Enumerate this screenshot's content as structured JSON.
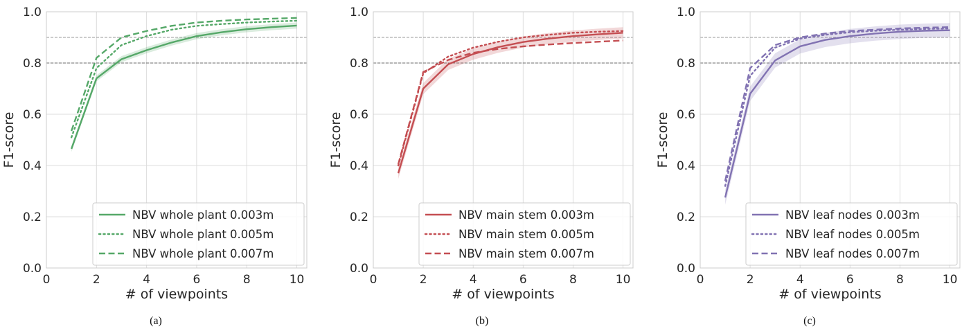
{
  "chart_data": [
    {
      "type": "line",
      "panel_label": "(a)",
      "xlabel": "# of viewpoints",
      "ylabel": "F1-score",
      "xlim": [
        0,
        10.4
      ],
      "ylim": [
        0,
        1.0
      ],
      "xticks": [
        "0",
        "2",
        "4",
        "6",
        "8",
        "10"
      ],
      "yticks": [
        "0.0",
        "0.2",
        "0.4",
        "0.6",
        "0.8",
        "1.0"
      ],
      "grid": true,
      "legend_position": "lower-right",
      "hlines": [
        0.8,
        0.9
      ],
      "color": "#55a868",
      "x": [
        1,
        2,
        3,
        4,
        5,
        6,
        7,
        8,
        9,
        10
      ],
      "series": [
        {
          "name": "NBV whole plant 0.003m",
          "style": "solid",
          "values": [
            0.465,
            0.74,
            0.815,
            0.85,
            0.88,
            0.905,
            0.92,
            0.932,
            0.94,
            0.946
          ],
          "band": 0.012
        },
        {
          "name": "NBV whole plant 0.005m",
          "style": "dotted",
          "values": [
            0.51,
            0.78,
            0.87,
            0.905,
            0.93,
            0.945,
            0.952,
            0.958,
            0.962,
            0.965
          ],
          "band": 0.0
        },
        {
          "name": "NBV whole plant 0.007m",
          "style": "dashed",
          "values": [
            0.535,
            0.82,
            0.9,
            0.925,
            0.945,
            0.958,
            0.965,
            0.97,
            0.973,
            0.976
          ],
          "band": 0.0
        }
      ]
    },
    {
      "type": "line",
      "panel_label": "(b)",
      "xlabel": "# of viewpoints",
      "ylabel": "F1-score",
      "xlim": [
        0,
        10.4
      ],
      "ylim": [
        0,
        1.0
      ],
      "xticks": [
        "0",
        "2",
        "4",
        "6",
        "8",
        "10"
      ],
      "yticks": [
        "0.0",
        "0.2",
        "0.4",
        "0.6",
        "0.8",
        "1.0"
      ],
      "grid": true,
      "legend_position": "lower-right",
      "hlines": [
        0.8,
        0.9
      ],
      "color": "#c44e52",
      "x": [
        1,
        2,
        3,
        4,
        5,
        6,
        7,
        8,
        9,
        10
      ],
      "series": [
        {
          "name": "NBV main stem 0.003m",
          "style": "solid",
          "values": [
            0.37,
            0.7,
            0.795,
            0.835,
            0.862,
            0.882,
            0.895,
            0.905,
            0.912,
            0.918
          ],
          "band": 0.022
        },
        {
          "name": "NBV main stem 0.005m",
          "style": "dotted",
          "values": [
            0.4,
            0.76,
            0.825,
            0.86,
            0.883,
            0.9,
            0.91,
            0.918,
            0.922,
            0.925
          ],
          "band": 0.0
        },
        {
          "name": "NBV main stem 0.007m",
          "style": "dashed",
          "values": [
            0.405,
            0.765,
            0.812,
            0.84,
            0.855,
            0.865,
            0.872,
            0.878,
            0.883,
            0.888
          ],
          "band": 0.0
        }
      ]
    },
    {
      "type": "line",
      "panel_label": "(c)",
      "xlabel": "# of viewpoints",
      "ylabel": "F1-score",
      "xlim": [
        0,
        10.4
      ],
      "ylim": [
        0,
        1.0
      ],
      "xticks": [
        "0",
        "2",
        "4",
        "6",
        "8",
        "10"
      ],
      "yticks": [
        "0.0",
        "0.2",
        "0.4",
        "0.6",
        "0.8",
        "1.0"
      ],
      "grid": true,
      "legend_position": "lower-right",
      "hlines": [
        0.8,
        0.9
      ],
      "color": "#8172b2",
      "x": [
        1,
        2,
        3,
        4,
        5,
        6,
        7,
        8,
        9,
        10
      ],
      "series": [
        {
          "name": "NBV leaf nodes 0.003m",
          "style": "solid",
          "values": [
            0.275,
            0.68,
            0.81,
            0.865,
            0.89,
            0.905,
            0.915,
            0.922,
            0.926,
            0.928
          ],
          "band": 0.028
        },
        {
          "name": "NBV leaf nodes 0.005m",
          "style": "dotted",
          "values": [
            0.32,
            0.75,
            0.86,
            0.895,
            0.91,
            0.92,
            0.926,
            0.93,
            0.933,
            0.935
          ],
          "band": 0.0
        },
        {
          "name": "NBV leaf nodes 0.007m",
          "style": "dashed",
          "values": [
            0.34,
            0.78,
            0.87,
            0.9,
            0.915,
            0.925,
            0.93,
            0.935,
            0.938,
            0.94
          ],
          "band": 0.0
        }
      ]
    }
  ]
}
